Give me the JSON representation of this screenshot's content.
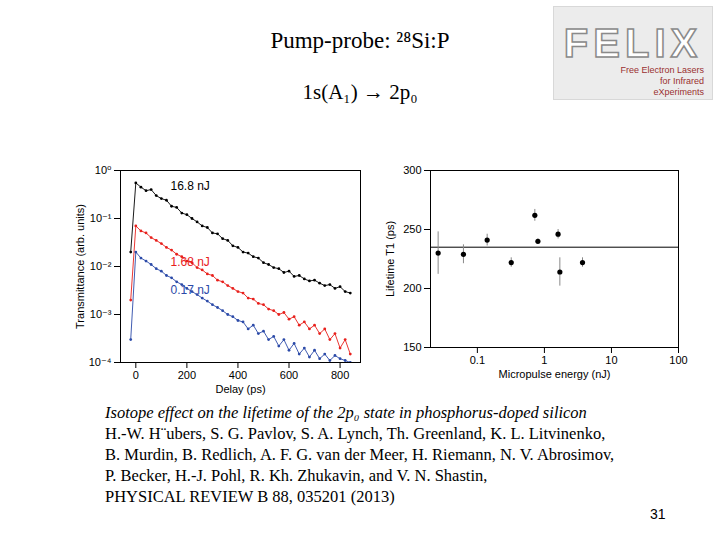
{
  "slide": {
    "title": "Pump-probe: ²⁸Si:P",
    "subtitle": "1s(A₁) → 2p₀",
    "logo": {
      "text": "FELIX",
      "subtext": "Free Electron Lasers for Infrared eXperiments"
    },
    "caption": [
      "Isotope effect on the lifetime of the 2p₀ state in phosphorus-doped silicon",
      "H.-W. H¨ubers, S. G. Pavlov, S. A. Lynch, Th. Greenland, K. L. Litvinenko,",
      "B. Murdin, B. Redlich, A. F. G. van der Meer, H. Riemann, N. V. Abrosimov,",
      "P. Becker, H.-J. Pohl, R. Kh. Zhukavin, and V. N. Shastin,",
      "PHYSICAL REVIEW B 88, 035201 (2013)"
    ],
    "page_number": "31"
  },
  "chart_data": [
    {
      "type": "line",
      "x_label": "Delay (ps)",
      "y_label": "Transmittance (arb. units)",
      "log": "y",
      "grid": false,
      "xlim": [
        -60,
        880
      ],
      "xticks": [
        0,
        200,
        400,
        600,
        800
      ],
      "ylim": [
        0.0001,
        1
      ],
      "yticks": [
        {
          "value": 0.0001,
          "label": "10⁻⁴"
        },
        {
          "value": 0.001,
          "label": "10⁻³"
        },
        {
          "value": 0.01,
          "label": "10⁻²"
        },
        {
          "value": 0.1,
          "label": "10⁻¹"
        },
        {
          "value": 1,
          "label": "10⁰"
        }
      ],
      "x": [
        -20,
        0,
        20,
        40,
        60,
        80,
        100,
        120,
        140,
        160,
        180,
        200,
        220,
        240,
        260,
        280,
        300,
        320,
        340,
        360,
        380,
        400,
        420,
        440,
        460,
        480,
        500,
        520,
        540,
        560,
        580,
        600,
        620,
        640,
        660,
        680,
        700,
        720,
        740,
        760,
        780,
        800,
        820,
        840
      ],
      "series": [
        {
          "name": "16.8 nJ",
          "color": "#000000",
          "marker": "dot",
          "line_style": "solid",
          "values": [
            0.02,
            0.55,
            0.45,
            0.38,
            0.4,
            0.3,
            0.26,
            0.24,
            0.18,
            0.17,
            0.13,
            0.12,
            0.1,
            0.085,
            0.07,
            0.065,
            0.05,
            0.048,
            0.038,
            0.035,
            0.027,
            0.025,
            0.02,
            0.019,
            0.016,
            0.015,
            0.012,
            0.011,
            0.0095,
            0.009,
            0.0075,
            0.008,
            0.0062,
            0.0065,
            0.0055,
            0.005,
            0.0052,
            0.0045,
            0.004,
            0.0042,
            0.0035,
            0.0038,
            0.003,
            0.0028
          ]
        },
        {
          "name": "1.68 nJ",
          "color": "#e8201c",
          "marker": "dot",
          "line_style": "solid",
          "values": [
            0.002,
            0.07,
            0.055,
            0.05,
            0.04,
            0.035,
            0.03,
            0.025,
            0.022,
            0.018,
            0.016,
            0.013,
            0.012,
            0.0095,
            0.0085,
            0.007,
            0.0065,
            0.0052,
            0.0048,
            0.004,
            0.0035,
            0.003,
            0.0028,
            0.0022,
            0.0021,
            0.0017,
            0.0016,
            0.0013,
            0.0012,
            0.001,
            0.0011,
            0.0008,
            0.0009,
            0.0006,
            0.0007,
            0.0005,
            0.0006,
            0.0004,
            0.0005,
            0.0003,
            0.0004,
            0.0002,
            0.0003,
            0.00015
          ]
        },
        {
          "name": "0.17 nJ",
          "color": "#2b4aa8",
          "marker": "dot",
          "line_style": "solid",
          "values": [
            0.0003,
            0.02,
            0.015,
            0.013,
            0.011,
            0.009,
            0.008,
            0.0065,
            0.0058,
            0.0048,
            0.0042,
            0.0035,
            0.003,
            0.0026,
            0.0022,
            0.0019,
            0.0016,
            0.0014,
            0.0012,
            0.001,
            0.0009,
            0.00075,
            0.0007,
            0.0005,
            0.0006,
            0.0004,
            0.00045,
            0.0003,
            0.00035,
            0.00022,
            0.0003,
            0.00018,
            0.00025,
            0.00015,
            0.0002,
            0.00013,
            0.00018,
            0.00012,
            0.00015,
            0.00011,
            0.00014,
            0.00012,
            0.00011,
            0.0001
          ]
        }
      ]
    },
    {
      "type": "scatter",
      "x_label": "Micropulse energy (nJ)",
      "y_label": "Lifetime T1 (ps)",
      "log": "x",
      "grid": false,
      "xlim": [
        0.02,
        100
      ],
      "xticks": [
        0.1,
        1,
        10,
        100
      ],
      "ylim": [
        150,
        300
      ],
      "yticks": [
        150,
        200,
        250,
        300
      ],
      "color": "#000000",
      "marker": "dot",
      "x": [
        0.026,
        0.062,
        0.14,
        0.32,
        0.72,
        0.8,
        1.6,
        1.7,
        3.7
      ],
      "values": [
        230,
        229,
        241,
        222,
        262,
        240,
        246,
        214,
        222
      ],
      "errors": [
        18,
        8,
        5,
        4,
        5,
        2,
        4,
        12,
        4
      ],
      "reference_line": 235
    }
  ]
}
